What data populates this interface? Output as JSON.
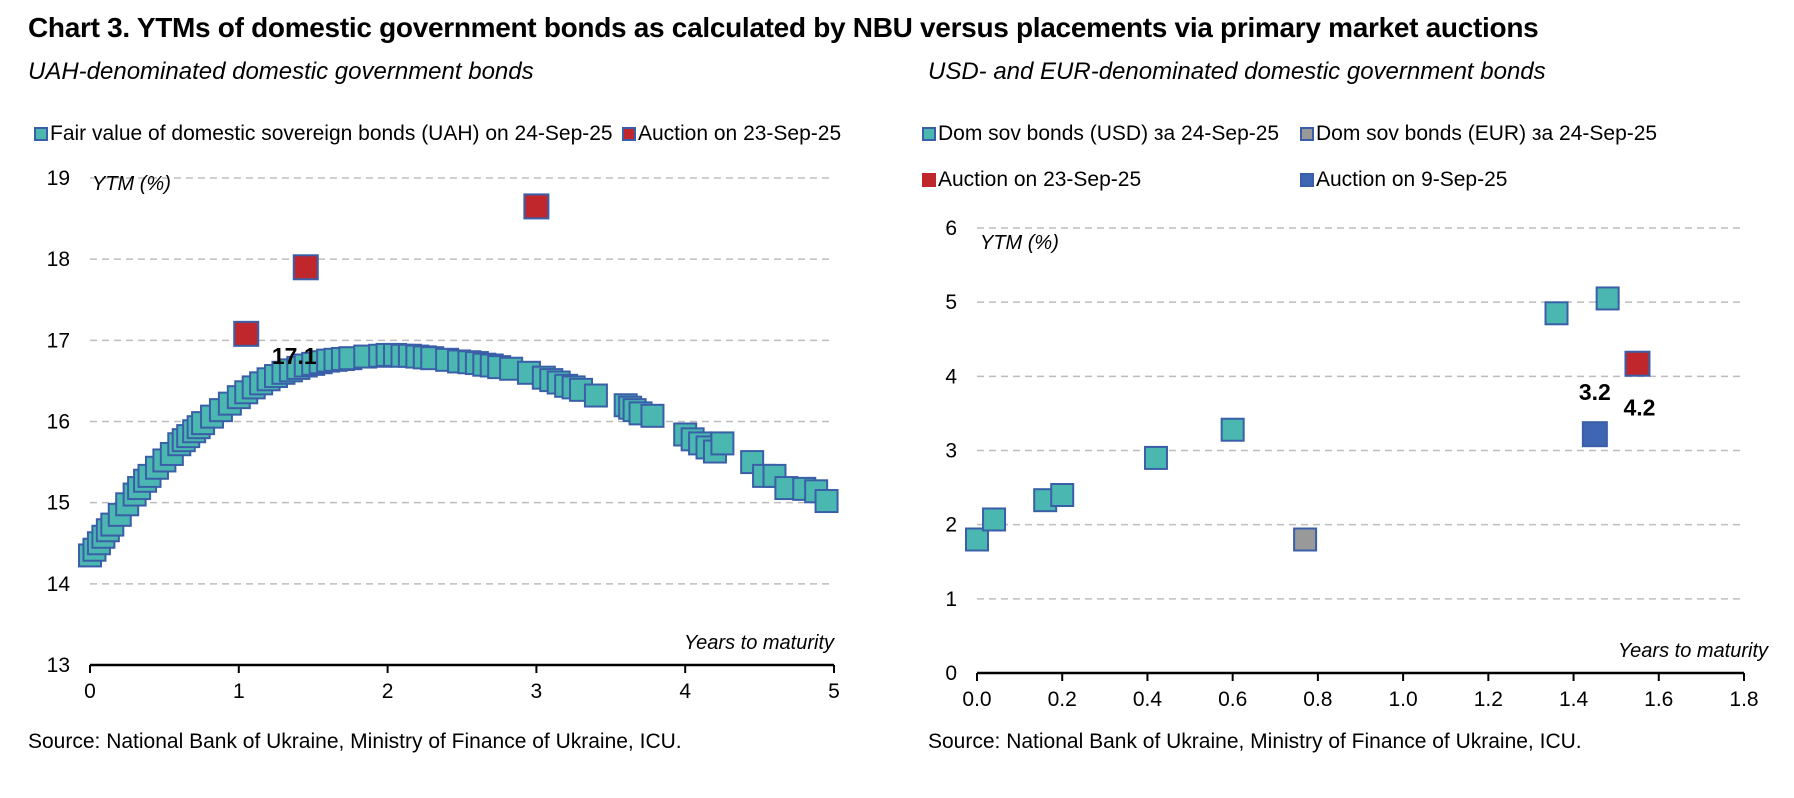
{
  "title": "Chart 3. YTMs of domestic government bonds as calculated by NBU versus placements via primary market auctions",
  "colors": {
    "teal": "#4ab8b0",
    "red": "#c0272d",
    "grey": "#999999",
    "blue": "#3f66b3",
    "border": "#3a5fa8"
  },
  "left": {
    "subtitle": "UAH-denominated domestic government bonds",
    "source": "Source: National Bank of Ukraine, Ministry of Finance of Ukraine, ICU.",
    "legend": [
      {
        "label": "Fair value of domestic sovereign bonds (UAH) on 24-Sep-25",
        "color": "#4ab8b0"
      },
      {
        "label": "Auction on 23-Sep-25",
        "color": "#c0272d"
      }
    ]
  },
  "right": {
    "subtitle": "USD- and EUR-denominated domestic government bonds",
    "source": "Source: National Bank of Ukraine, Ministry of Finance of Ukraine, ICU.",
    "legend": [
      {
        "label": "Dom sov bonds (USD) за 24-Sep-25",
        "color": "#4ab8b0"
      },
      {
        "label": "Dom sov bonds (EUR) за 24-Sep-25",
        "color": "#999999"
      },
      {
        "label": "Auction on 23-Sep-25",
        "color": "#c0272d"
      },
      {
        "label": "Auction on 9-Sep-25",
        "color": "#3f66b3"
      }
    ]
  },
  "chart_data": [
    {
      "type": "scatter",
      "ylabel": "YTM (%)",
      "xlabel": "Years to maturity",
      "xlim": [
        0,
        5
      ],
      "ylim": [
        13,
        19
      ],
      "xticks": [
        "0",
        "1",
        "2",
        "3",
        "4",
        "5"
      ],
      "yticks": [
        "13",
        "14",
        "15",
        "16",
        "17",
        "18",
        "19"
      ],
      "grid": "horizontal dashed",
      "series": [
        {
          "name": "Fair value of domestic sovereign bonds (UAH) on 24-Sep-25",
          "color": "#4ab8b0",
          "points": [
            [
              0.0,
              14.35
            ],
            [
              0.03,
              14.42
            ],
            [
              0.06,
              14.5
            ],
            [
              0.09,
              14.58
            ],
            [
              0.12,
              14.66
            ],
            [
              0.15,
              14.73
            ],
            [
              0.2,
              14.85
            ],
            [
              0.25,
              14.98
            ],
            [
              0.3,
              15.1
            ],
            [
              0.33,
              15.18
            ],
            [
              0.37,
              15.27
            ],
            [
              0.4,
              15.33
            ],
            [
              0.45,
              15.43
            ],
            [
              0.5,
              15.52
            ],
            [
              0.55,
              15.6
            ],
            [
              0.6,
              15.72
            ],
            [
              0.63,
              15.77
            ],
            [
              0.66,
              15.82
            ],
            [
              0.7,
              15.88
            ],
            [
              0.73,
              15.93
            ],
            [
              0.76,
              15.98
            ],
            [
              0.82,
              16.06
            ],
            [
              0.88,
              16.14
            ],
            [
              0.94,
              16.22
            ],
            [
              1.0,
              16.3
            ],
            [
              1.05,
              16.36
            ],
            [
              1.1,
              16.42
            ],
            [
              1.15,
              16.47
            ],
            [
              1.2,
              16.52
            ],
            [
              1.25,
              16.56
            ],
            [
              1.3,
              16.6
            ],
            [
              1.35,
              16.63
            ],
            [
              1.4,
              16.66
            ],
            [
              1.45,
              16.69
            ],
            [
              1.5,
              16.71
            ],
            [
              1.55,
              16.73
            ],
            [
              1.6,
              16.75
            ],
            [
              1.65,
              16.76
            ],
            [
              1.7,
              16.77
            ],
            [
              1.75,
              16.78
            ],
            [
              1.85,
              16.8
            ],
            [
              1.95,
              16.81
            ],
            [
              2.0,
              16.82
            ],
            [
              2.05,
              16.82
            ],
            [
              2.1,
              16.81
            ],
            [
              2.15,
              16.81
            ],
            [
              2.2,
              16.8
            ],
            [
              2.25,
              16.79
            ],
            [
              2.3,
              16.78
            ],
            [
              2.4,
              16.76
            ],
            [
              2.48,
              16.74
            ],
            [
              2.55,
              16.73
            ],
            [
              2.6,
              16.72
            ],
            [
              2.65,
              16.7
            ],
            [
              2.7,
              16.69
            ],
            [
              2.75,
              16.67
            ],
            [
              2.83,
              16.65
            ],
            [
              2.95,
              16.6
            ],
            [
              3.05,
              16.54
            ],
            [
              3.1,
              16.51
            ],
            [
              3.15,
              16.48
            ],
            [
              3.2,
              16.44
            ],
            [
              3.25,
              16.42
            ],
            [
              3.3,
              16.39
            ],
            [
              3.4,
              16.32
            ],
            [
              3.6,
              16.2
            ],
            [
              3.63,
              16.17
            ],
            [
              3.66,
              16.14
            ],
            [
              3.7,
              16.1
            ],
            [
              3.78,
              16.07
            ],
            [
              4.0,
              15.84
            ],
            [
              4.05,
              15.78
            ],
            [
              4.1,
              15.73
            ],
            [
              4.15,
              15.68
            ],
            [
              4.2,
              15.63
            ],
            [
              4.25,
              15.73
            ],
            [
              4.45,
              15.5
            ],
            [
              4.53,
              15.33
            ],
            [
              4.6,
              15.33
            ],
            [
              4.68,
              15.18
            ],
            [
              4.8,
              15.17
            ],
            [
              4.88,
              15.14
            ],
            [
              4.95,
              15.02
            ]
          ]
        },
        {
          "name": "Auction on 23-Sep-25",
          "color": "#c0272d",
          "points": [
            [
              1.05,
              17.08
            ],
            [
              1.45,
              17.9
            ],
            [
              3.0,
              18.65
            ]
          ]
        }
      ],
      "annotations": [
        {
          "text": "17.1",
          "x": 1.05,
          "y": 17.08
        }
      ]
    },
    {
      "type": "scatter",
      "ylabel": "YTM (%)",
      "xlabel": "Years to maturity",
      "xlim": [
        0,
        1.8
      ],
      "ylim": [
        0,
        6
      ],
      "xticks": [
        "0.0",
        "0.2",
        "0.4",
        "0.6",
        "0.8",
        "1.0",
        "1.2",
        "1.4",
        "1.6",
        "1.8"
      ],
      "yticks": [
        "0",
        "1",
        "2",
        "3",
        "4",
        "5",
        "6"
      ],
      "grid": "horizontal dashed",
      "series": [
        {
          "name": "Dom sov bonds (USD) за 24-Sep-25",
          "color": "#4ab8b0",
          "points": [
            [
              0.0,
              1.8
            ],
            [
              0.04,
              2.07
            ],
            [
              0.16,
              2.33
            ],
            [
              0.2,
              2.4
            ],
            [
              0.42,
              2.9
            ],
            [
              0.6,
              3.28
            ],
            [
              1.36,
              4.85
            ],
            [
              1.48,
              5.05
            ]
          ]
        },
        {
          "name": "Dom sov bonds (EUR) за 24-Sep-25",
          "color": "#999999",
          "points": [
            [
              0.77,
              1.8
            ]
          ]
        },
        {
          "name": "Auction on 23-Sep-25",
          "color": "#c0272d",
          "points": [
            [
              1.55,
              4.17
            ]
          ]
        },
        {
          "name": "Auction on 9-Sep-25",
          "color": "#3f66b3",
          "points": [
            [
              1.45,
              3.22
            ]
          ]
        }
      ],
      "annotations": [
        {
          "text": "3.2",
          "x": 1.45,
          "y": 3.22
        },
        {
          "text": "4.2",
          "x": 1.55,
          "y": 4.17
        }
      ]
    }
  ]
}
